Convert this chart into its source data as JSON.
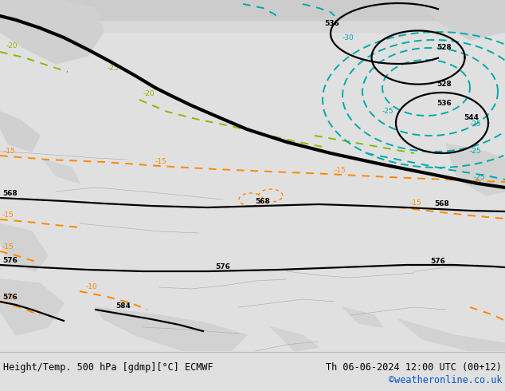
{
  "title_left": "Height/Temp. 500 hPa [gdmp][°C] ECMWF",
  "title_right": "Th 06-06-2024 12:00 UTC (00+12)",
  "credit": "©weatheronline.co.uk",
  "fig_bg": "#e0e0e0",
  "map_green": "#c8e88a",
  "map_gray": "#d0d0d0",
  "map_light_gray": "#e8e8e8",
  "bottom_white": "#ffffff",
  "credit_color": "#0055cc",
  "temp_lime": "#88bb00",
  "temp_orange": "#ff8800",
  "temp_cyan": "#00aaaa",
  "geo_black": "#000000",
  "title_font_size": 8.5,
  "figsize": [
    6.34,
    4.9
  ],
  "dpi": 100
}
